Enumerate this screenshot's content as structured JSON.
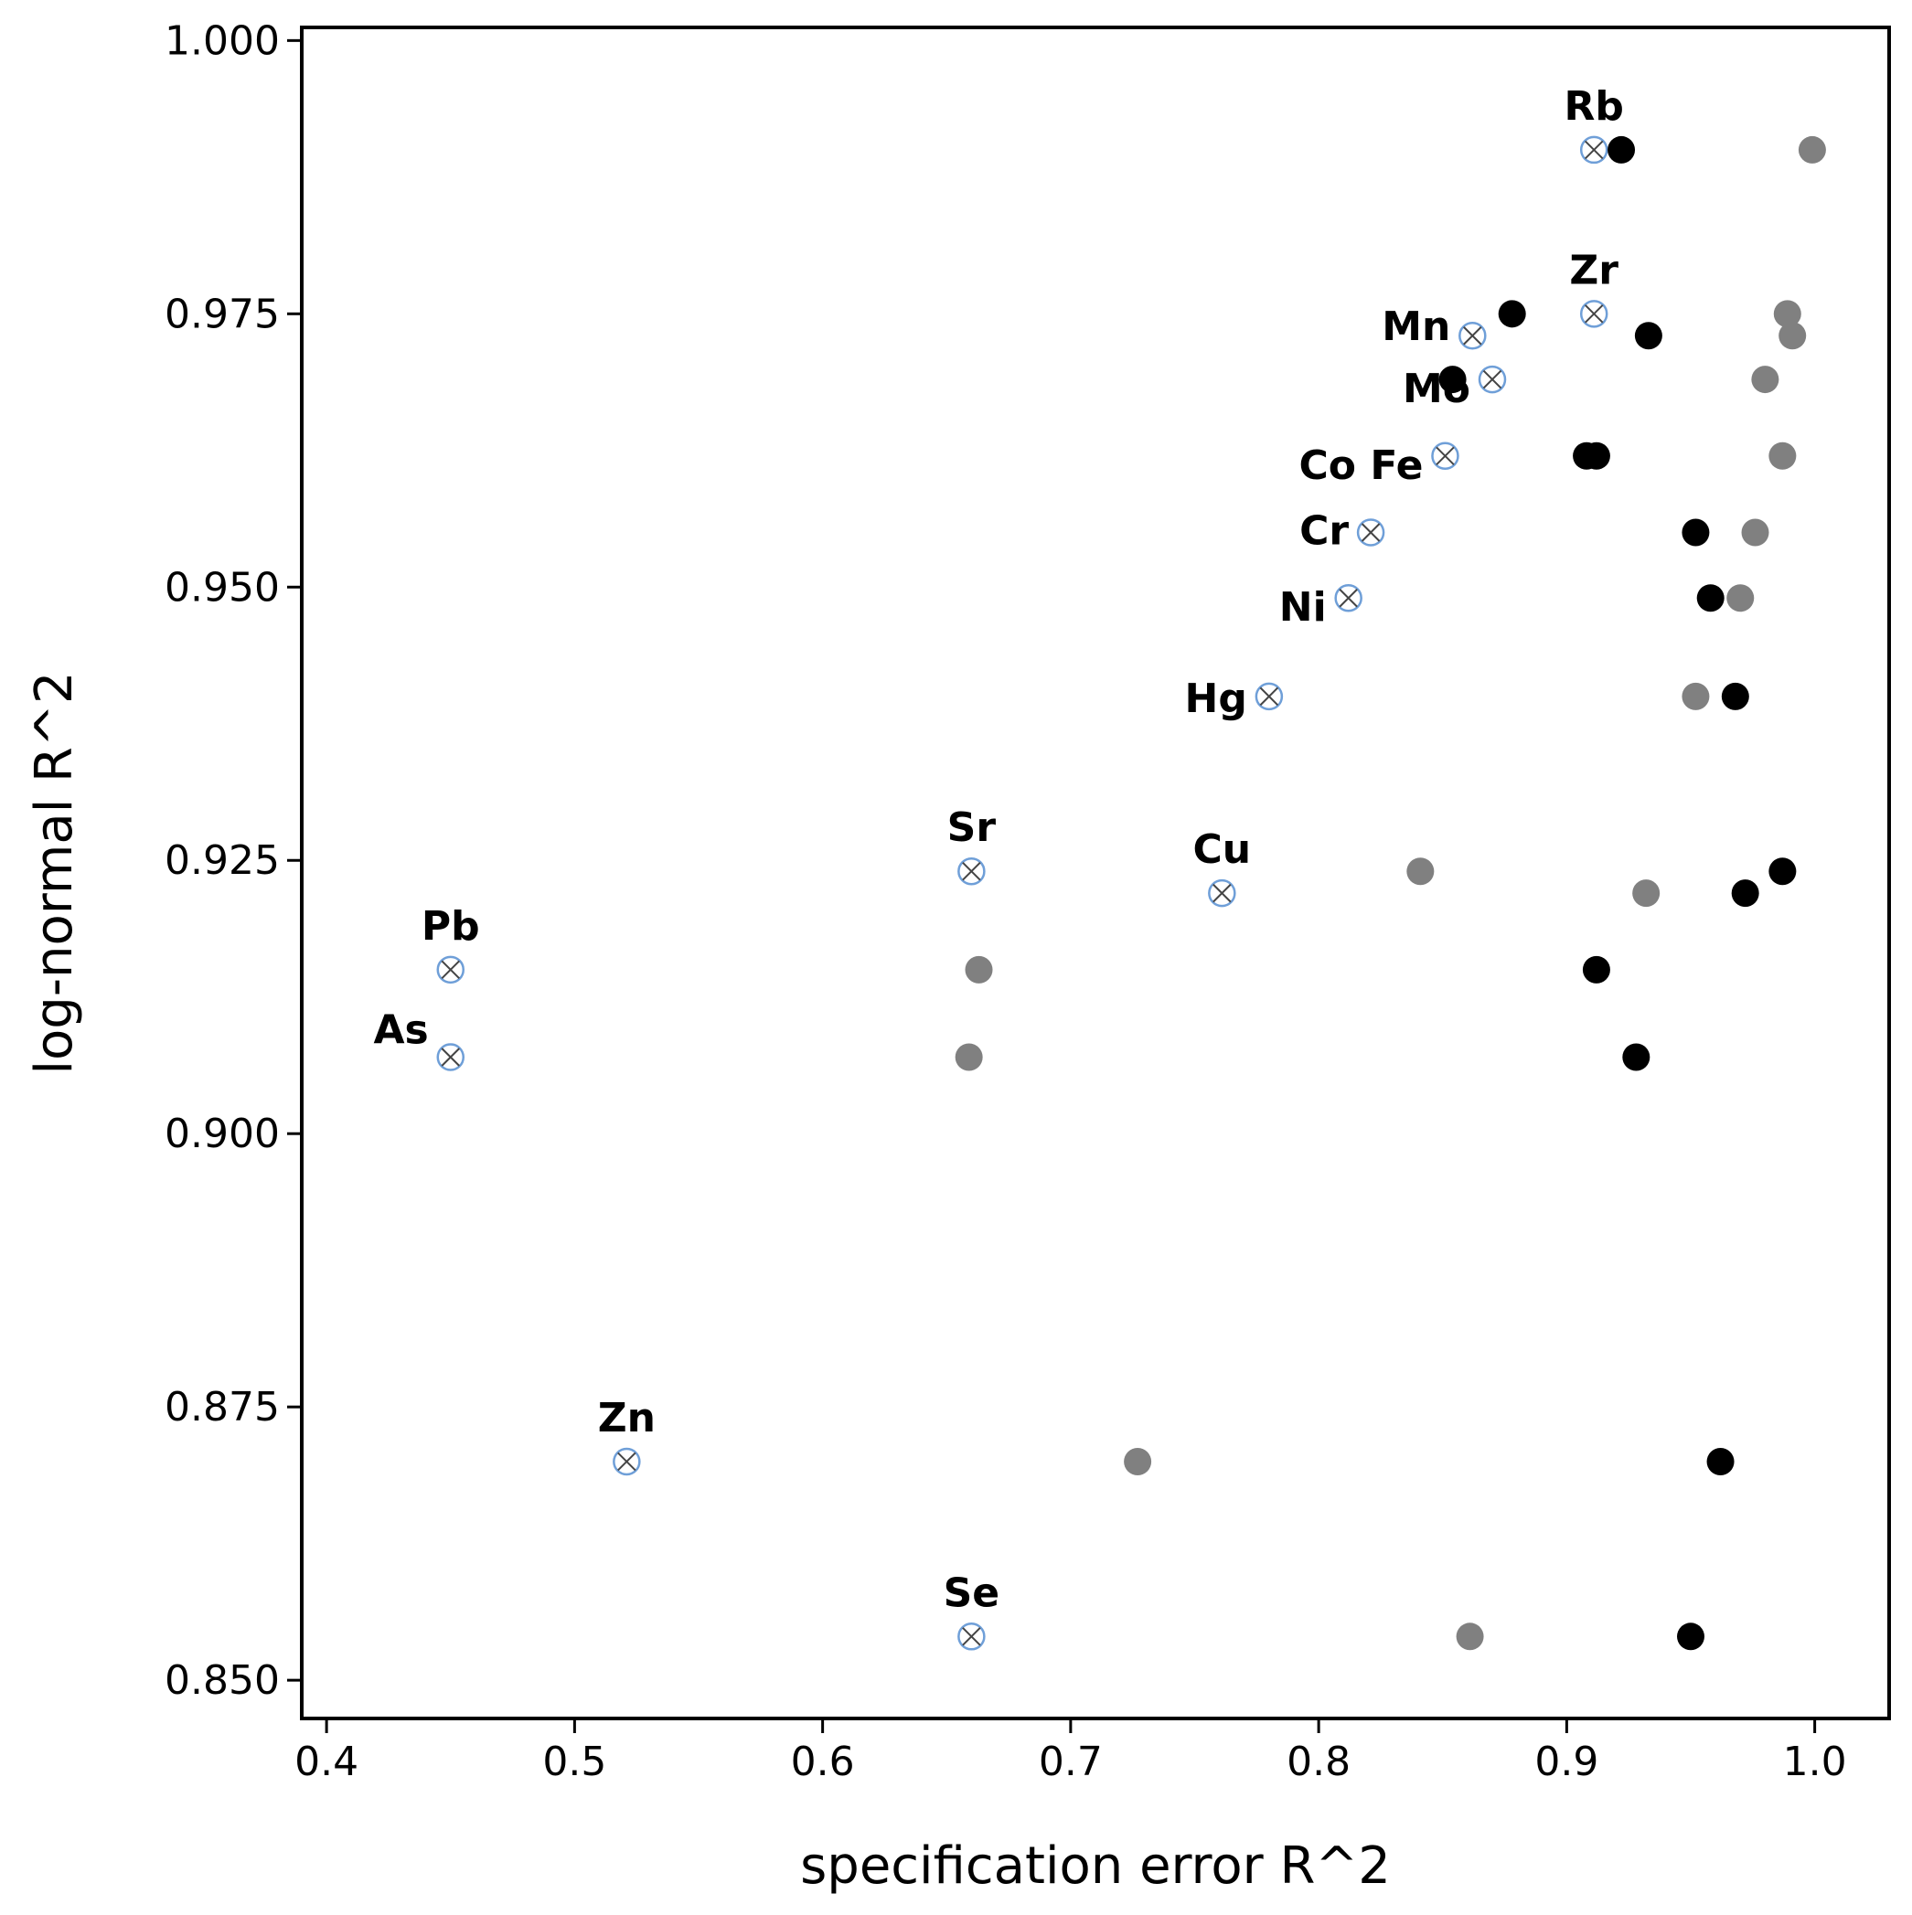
{
  "chart_data": {
    "type": "scatter",
    "xlabel": "specification error R^2",
    "ylabel": "log-normal R^2",
    "xlim": [
      0.39,
      1.03
    ],
    "ylim": [
      0.8465,
      1.0012
    ],
    "xticks": [
      "0.4",
      "0.5",
      "0.6",
      "0.7",
      "0.8",
      "0.9",
      "1.0"
    ],
    "yticks": [
      "0.850",
      "0.875",
      "0.900",
      "0.925",
      "0.950",
      "0.975",
      "1.000"
    ],
    "grid": false,
    "legend": "none",
    "colors": {
      "open_marker": "#6f9fd8",
      "black": "#000000",
      "gray": "#808080"
    },
    "series": [
      {
        "marker": "circle-x-open",
        "points": [
          {
            "label": "Rb",
            "x": 0.911,
            "y": 0.99
          },
          {
            "label": "Zr",
            "x": 0.911,
            "y": 0.975
          },
          {
            "label": "Mn",
            "x": 0.862,
            "y": 0.973
          },
          {
            "label": "Mo",
            "x": 0.87,
            "y": 0.969
          },
          {
            "label": "Co Fe",
            "x": 0.851,
            "y": 0.962
          },
          {
            "label": "Cr",
            "x": 0.821,
            "y": 0.955
          },
          {
            "label": "Ni",
            "x": 0.812,
            "y": 0.949
          },
          {
            "label": "Hg",
            "x": 0.78,
            "y": 0.94
          },
          {
            "label": "Sr",
            "x": 0.66,
            "y": 0.924
          },
          {
            "label": "Cu",
            "x": 0.761,
            "y": 0.922
          },
          {
            "label": "Pb",
            "x": 0.45,
            "y": 0.915
          },
          {
            "label": "As",
            "x": 0.45,
            "y": 0.907
          },
          {
            "label": "Zn",
            "x": 0.521,
            "y": 0.87
          },
          {
            "label": "Se",
            "x": 0.66,
            "y": 0.854
          }
        ]
      },
      {
        "marker": "filled-black",
        "points": [
          {
            "x": 0.922,
            "y": 0.99
          },
          {
            "x": 0.878,
            "y": 0.975
          },
          {
            "x": 0.933,
            "y": 0.973
          },
          {
            "x": 0.854,
            "y": 0.969
          },
          {
            "x": 0.908,
            "y": 0.962
          },
          {
            "x": 0.912,
            "y": 0.962
          },
          {
            "x": 0.952,
            "y": 0.955
          },
          {
            "x": 0.958,
            "y": 0.949
          },
          {
            "x": 0.968,
            "y": 0.94
          },
          {
            "x": 0.987,
            "y": 0.924
          },
          {
            "x": 0.972,
            "y": 0.922
          },
          {
            "x": 0.912,
            "y": 0.915
          },
          {
            "x": 0.928,
            "y": 0.907
          },
          {
            "x": 0.962,
            "y": 0.87
          },
          {
            "x": 0.95,
            "y": 0.854
          }
        ]
      },
      {
        "marker": "filled-gray",
        "points": [
          {
            "x": 0.999,
            "y": 0.99
          },
          {
            "x": 0.989,
            "y": 0.975
          },
          {
            "x": 0.991,
            "y": 0.973
          },
          {
            "x": 0.98,
            "y": 0.969
          },
          {
            "x": 0.987,
            "y": 0.962
          },
          {
            "x": 0.976,
            "y": 0.955
          },
          {
            "x": 0.97,
            "y": 0.949
          },
          {
            "x": 0.952,
            "y": 0.94
          },
          {
            "x": 0.841,
            "y": 0.924
          },
          {
            "x": 0.932,
            "y": 0.922
          },
          {
            "x": 0.663,
            "y": 0.915
          },
          {
            "x": 0.659,
            "y": 0.907
          },
          {
            "x": 0.727,
            "y": 0.87
          },
          {
            "x": 0.861,
            "y": 0.854
          }
        ]
      }
    ]
  }
}
